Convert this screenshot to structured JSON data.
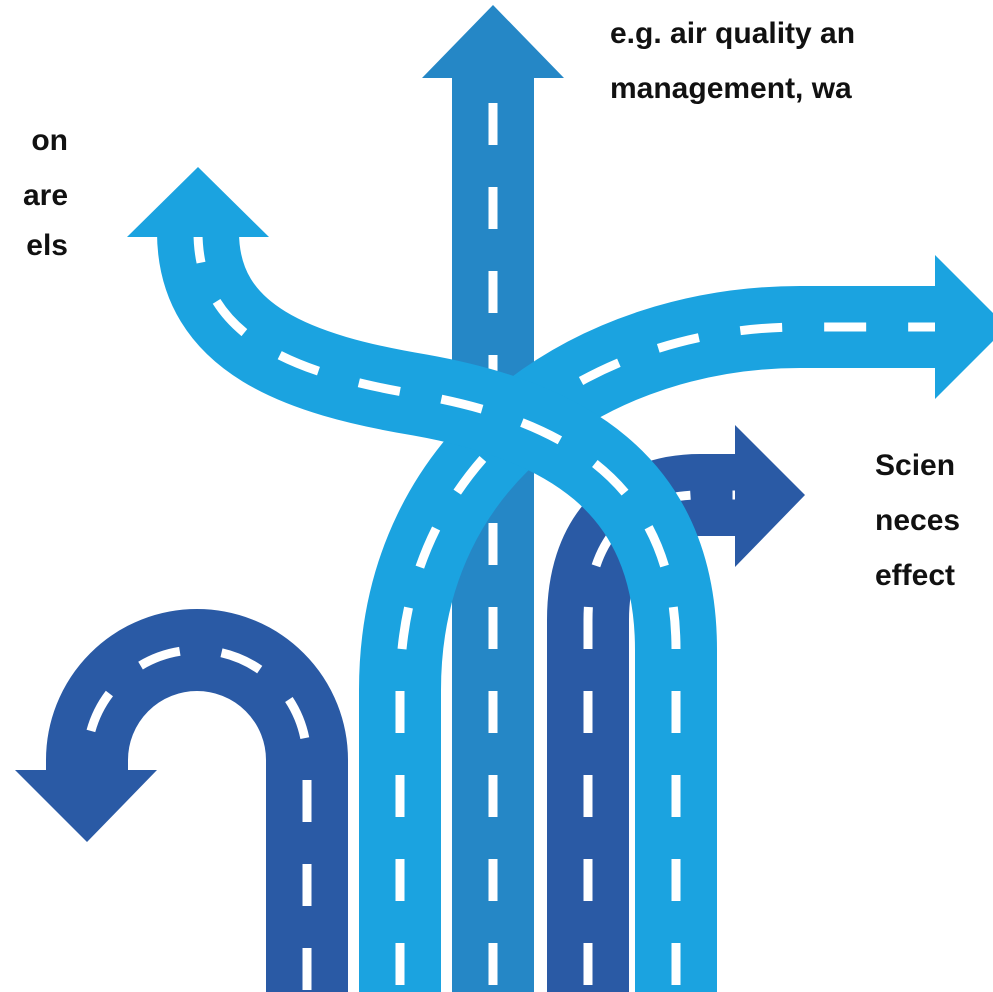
{
  "labels": {
    "left": [
      "on",
      "are",
      "els"
    ],
    "top_right": [
      "e.g. air quality an",
      "management, wa"
    ],
    "right": [
      "Scien",
      "neces",
      "effect"
    ]
  }
}
